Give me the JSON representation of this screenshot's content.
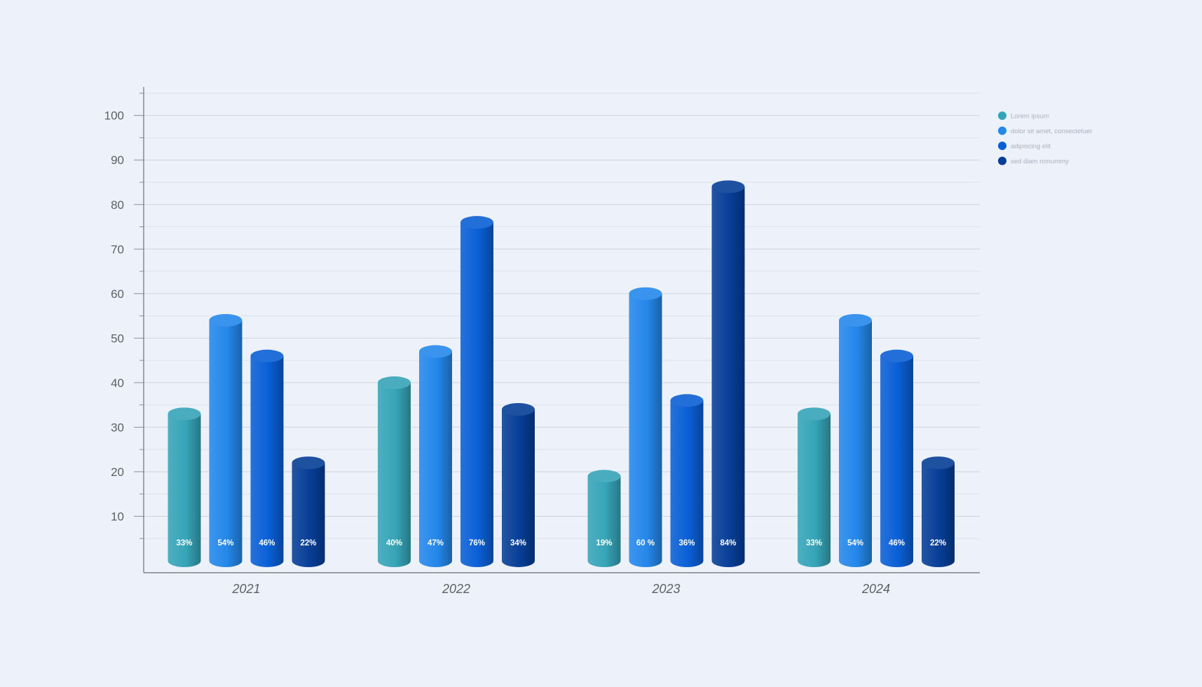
{
  "chart_data": {
    "type": "bar",
    "style": "3d-cylinder",
    "categories": [
      "2021",
      "2022",
      "2023",
      "2024"
    ],
    "series": [
      {
        "name": "Lorem ipsum",
        "color": "#36a4b8",
        "values": [
          33,
          40,
          19,
          33
        ],
        "labels": [
          "33%",
          "40%",
          "19%",
          "33%"
        ]
      },
      {
        "name": "dolor sit amet, consectetuer",
        "color": "#2487ea",
        "values": [
          54,
          47,
          60,
          54
        ],
        "labels": [
          "54%",
          "47%",
          "60 %",
          "54%"
        ]
      },
      {
        "name": "adipiscing elit",
        "color": "#0a5fd6",
        "values": [
          46,
          76,
          36,
          46
        ],
        "labels": [
          "46%",
          "76%",
          "36%",
          "46%"
        ]
      },
      {
        "name": "sed diam nonummy",
        "color": "#063e97",
        "values": [
          22,
          34,
          84,
          22
        ],
        "labels": [
          "22%",
          "34%",
          "84%",
          "22%"
        ]
      }
    ],
    "yticks": [
      "10",
      "20",
      "30",
      "40",
      "50",
      "60",
      "70",
      "80",
      "90",
      "100"
    ],
    "ylim": [
      0,
      100
    ],
    "title": "",
    "xlabel": "",
    "ylabel": "",
    "grid": true,
    "legend_position": "top-right"
  }
}
